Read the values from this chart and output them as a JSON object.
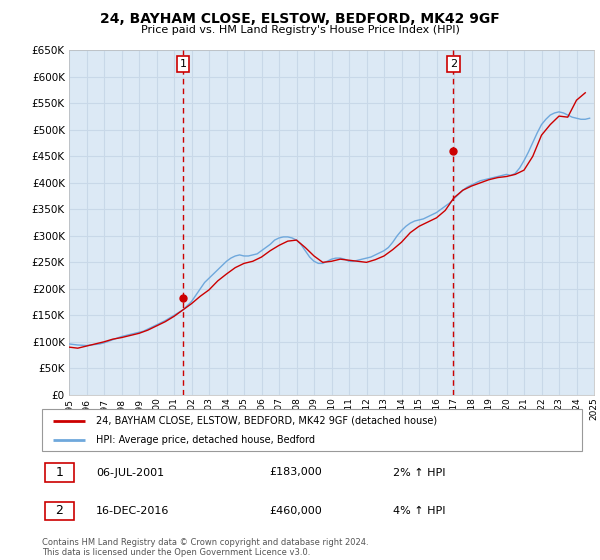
{
  "title1": "24, BAYHAM CLOSE, ELSTOW, BEDFORD, MK42 9GF",
  "title2": "Price paid vs. HM Land Registry's House Price Index (HPI)",
  "plot_bg": "#dce9f5",
  "legend1": "24, BAYHAM CLOSE, ELSTOW, BEDFORD, MK42 9GF (detached house)",
  "legend2": "HPI: Average price, detached house, Bedford",
  "marker1_date": "06-JUL-2001",
  "marker1_price": "£183,000",
  "marker1_hpi": "2% ↑ HPI",
  "marker1_year": 2001.52,
  "marker1_value": 183000,
  "marker2_date": "16-DEC-2016",
  "marker2_price": "£460,000",
  "marker2_hpi": "4% ↑ HPI",
  "marker2_year": 2016.96,
  "marker2_value": 460000,
  "footer": "Contains HM Land Registry data © Crown copyright and database right 2024.\nThis data is licensed under the Open Government Licence v3.0.",
  "ylim": [
    0,
    650000
  ],
  "xlim_start": 1995,
  "xlim_end": 2025,
  "yticks": [
    0,
    50000,
    100000,
    150000,
    200000,
    250000,
    300000,
    350000,
    400000,
    450000,
    500000,
    550000,
    600000,
    650000
  ],
  "ytick_labels": [
    "£0",
    "£50K",
    "£100K",
    "£150K",
    "£200K",
    "£250K",
    "£300K",
    "£350K",
    "£400K",
    "£450K",
    "£500K",
    "£550K",
    "£600K",
    "£650K"
  ],
  "hpi_color": "#6fa8dc",
  "price_color": "#cc0000",
  "marker_box_color": "#cc0000",
  "grid_color": "#c8d8e8",
  "hpi_data_years": [
    1995,
    1995.25,
    1995.5,
    1995.75,
    1996,
    1996.25,
    1996.5,
    1996.75,
    1997,
    1997.25,
    1997.5,
    1997.75,
    1998,
    1998.25,
    1998.5,
    1998.75,
    1999,
    1999.25,
    1999.5,
    1999.75,
    2000,
    2000.25,
    2000.5,
    2000.75,
    2001,
    2001.25,
    2001.5,
    2001.75,
    2002,
    2002.25,
    2002.5,
    2002.75,
    2003,
    2003.25,
    2003.5,
    2003.75,
    2004,
    2004.25,
    2004.5,
    2004.75,
    2005,
    2005.25,
    2005.5,
    2005.75,
    2006,
    2006.25,
    2006.5,
    2006.75,
    2007,
    2007.25,
    2007.5,
    2007.75,
    2008,
    2008.25,
    2008.5,
    2008.75,
    2009,
    2009.25,
    2009.5,
    2009.75,
    2010,
    2010.25,
    2010.5,
    2010.75,
    2011,
    2011.25,
    2011.5,
    2011.75,
    2012,
    2012.25,
    2012.5,
    2012.75,
    2013,
    2013.25,
    2013.5,
    2013.75,
    2014,
    2014.25,
    2014.5,
    2014.75,
    2015,
    2015.25,
    2015.5,
    2015.75,
    2016,
    2016.25,
    2016.5,
    2016.75,
    2017,
    2017.25,
    2017.5,
    2017.75,
    2018,
    2018.25,
    2018.5,
    2018.75,
    2019,
    2019.25,
    2019.5,
    2019.75,
    2020,
    2020.25,
    2020.5,
    2020.75,
    2021,
    2021.25,
    2021.5,
    2021.75,
    2022,
    2022.25,
    2022.5,
    2022.75,
    2023,
    2023.25,
    2023.5,
    2023.75,
    2024,
    2024.25,
    2024.5,
    2024.75
  ],
  "hpi_values": [
    96000,
    95000,
    94000,
    93500,
    93000,
    94000,
    95000,
    96000,
    98000,
    101000,
    104000,
    107000,
    110000,
    112000,
    114000,
    116000,
    118000,
    120000,
    124000,
    128000,
    132000,
    136000,
    140000,
    145000,
    150000,
    155000,
    160000,
    168000,
    176000,
    188000,
    200000,
    212000,
    220000,
    228000,
    236000,
    244000,
    252000,
    258000,
    262000,
    264000,
    262000,
    262000,
    264000,
    266000,
    272000,
    278000,
    284000,
    292000,
    296000,
    298000,
    298000,
    296000,
    292000,
    284000,
    272000,
    260000,
    252000,
    248000,
    248000,
    252000,
    256000,
    258000,
    258000,
    256000,
    252000,
    252000,
    254000,
    256000,
    258000,
    260000,
    264000,
    268000,
    272000,
    278000,
    288000,
    300000,
    310000,
    318000,
    324000,
    328000,
    330000,
    332000,
    336000,
    340000,
    344000,
    350000,
    356000,
    362000,
    370000,
    378000,
    386000,
    392000,
    396000,
    400000,
    404000,
    406000,
    408000,
    410000,
    412000,
    414000,
    416000,
    414000,
    418000,
    428000,
    442000,
    458000,
    476000,
    494000,
    510000,
    520000,
    528000,
    532000,
    534000,
    532000,
    528000,
    524000,
    522000,
    520000,
    520000,
    522000
  ],
  "price_data_years": [
    1995,
    1995.5,
    1996,
    1996.5,
    1997,
    1997.5,
    1998,
    1998.5,
    1999,
    1999.5,
    2000,
    2000.5,
    2001,
    2001.5,
    2002,
    2002.5,
    2003,
    2003.5,
    2004,
    2004.5,
    2005,
    2005.5,
    2006,
    2006.5,
    2007,
    2007.5,
    2008,
    2008.5,
    2009,
    2009.5,
    2010,
    2010.5,
    2011,
    2011.5,
    2012,
    2012.5,
    2013,
    2013.5,
    2014,
    2014.5,
    2015,
    2015.5,
    2016,
    2016.5,
    2017,
    2017.5,
    2018,
    2018.5,
    2019,
    2019.5,
    2020,
    2020.5,
    2021,
    2021.5,
    2022,
    2022.5,
    2023,
    2023.5,
    2024,
    2024.5
  ],
  "price_values": [
    90000,
    88000,
    92000,
    96000,
    100000,
    105000,
    108000,
    112000,
    116000,
    122000,
    130000,
    138000,
    148000,
    160000,
    172000,
    186000,
    198000,
    215000,
    228000,
    240000,
    248000,
    252000,
    260000,
    272000,
    282000,
    290000,
    292000,
    278000,
    262000,
    250000,
    252000,
    256000,
    254000,
    252000,
    250000,
    255000,
    262000,
    274000,
    288000,
    306000,
    318000,
    326000,
    334000,
    348000,
    372000,
    386000,
    394000,
    400000,
    406000,
    410000,
    412000,
    416000,
    424000,
    450000,
    490000,
    510000,
    526000,
    524000,
    556000,
    570000
  ]
}
